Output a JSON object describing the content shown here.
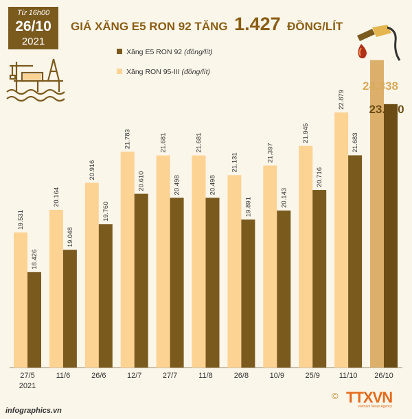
{
  "header": {
    "from_time": "Từ 16h00",
    "day": "26/10",
    "year": "2021",
    "title_prefix": "GIÁ XĂNG E5 RON 92 TĂNG",
    "title_number": "1.427",
    "title_unit": "ĐỒNG/LÍT"
  },
  "legend": [
    {
      "label": "Xăng E5 RON 92",
      "unit": "(đồng/lít)"
    },
    {
      "label": "Xăng RON 95-III",
      "unit": "(đồng/lít)"
    }
  ],
  "colors": {
    "e5": "#7b5a1e",
    "ron95": "#fdd394",
    "accent": "#8a5e14",
    "highlight_ron95": "#dcb06b",
    "highlight_e5": "#6b4c14"
  },
  "chart_data": {
    "type": "bar",
    "categories": [
      "27/5\n2021",
      "11/6",
      "26/6",
      "12/7",
      "27/7",
      "11/8",
      "26/8",
      "10/9",
      "25/9",
      "11/10",
      "26/10"
    ],
    "category_labels": [
      "27/5",
      "11/6",
      "26/6",
      "12/7",
      "27/7",
      "11/8",
      "26/8",
      "10/9",
      "25/9",
      "11/10",
      "26/10"
    ],
    "first_category_sublabel": "2021",
    "series": [
      {
        "name": "Xăng RON 95-III",
        "values": [
          19531,
          20164,
          20916,
          21783,
          21681,
          21681,
          21131,
          21397,
          21945,
          22879,
          24338
        ],
        "labels": [
          "19.531",
          "20.164",
          "20.916",
          "21.783",
          "21.681",
          "21.681",
          "21.131",
          "21.397",
          "21.945",
          "22.879",
          "24.338"
        ]
      },
      {
        "name": "Xăng E5 RON 92",
        "values": [
          18426,
          19048,
          19760,
          20610,
          20498,
          20498,
          19891,
          20143,
          20716,
          21683,
          23110
        ],
        "labels": [
          "18.426",
          "19.048",
          "19.760",
          "20.610",
          "20.498",
          "20.498",
          "19.891",
          "20.143",
          "20.716",
          "21.683",
          "23.110"
        ]
      }
    ]
  },
  "footer": {
    "site": "infographics.vn",
    "agency": "TTXVN",
    "agency_sub": "Vietnam News Agency",
    "copyright": "©"
  }
}
